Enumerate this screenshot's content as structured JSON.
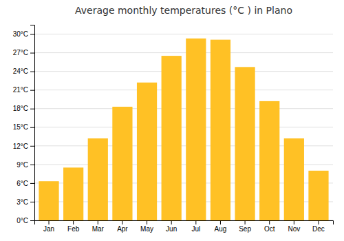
{
  "chart_data": {
    "type": "bar",
    "title": "Average monthly temperatures (°C ) in Plano",
    "categories": [
      "Jan",
      "Feb",
      "Mar",
      "Apr",
      "May",
      "Jun",
      "Jul",
      "Aug",
      "Sep",
      "Oct",
      "Nov",
      "Dec"
    ],
    "values": [
      6.3,
      8.5,
      13.2,
      18.3,
      22.2,
      26.5,
      29.3,
      29.1,
      24.7,
      19.2,
      13.2,
      8.0
    ],
    "color": "#FFC125",
    "ylim": [
      0,
      31.5
    ],
    "yticks": [
      {
        "value": 0,
        "label": "0°C"
      },
      {
        "value": 3,
        "label": "3°C"
      },
      {
        "value": 6,
        "label": "6°C"
      },
      {
        "value": 9,
        "label": "9°C"
      },
      {
        "value": 12,
        "label": "12°C"
      },
      {
        "value": 15,
        "label": "15°C"
      },
      {
        "value": 18,
        "label": "18°C"
      },
      {
        "value": 21,
        "label": "21°C"
      },
      {
        "value": 24,
        "label": "24°C"
      },
      {
        "value": 27,
        "label": "27°C"
      },
      {
        "value": 30,
        "label": "30°C"
      }
    ],
    "grid": true
  }
}
